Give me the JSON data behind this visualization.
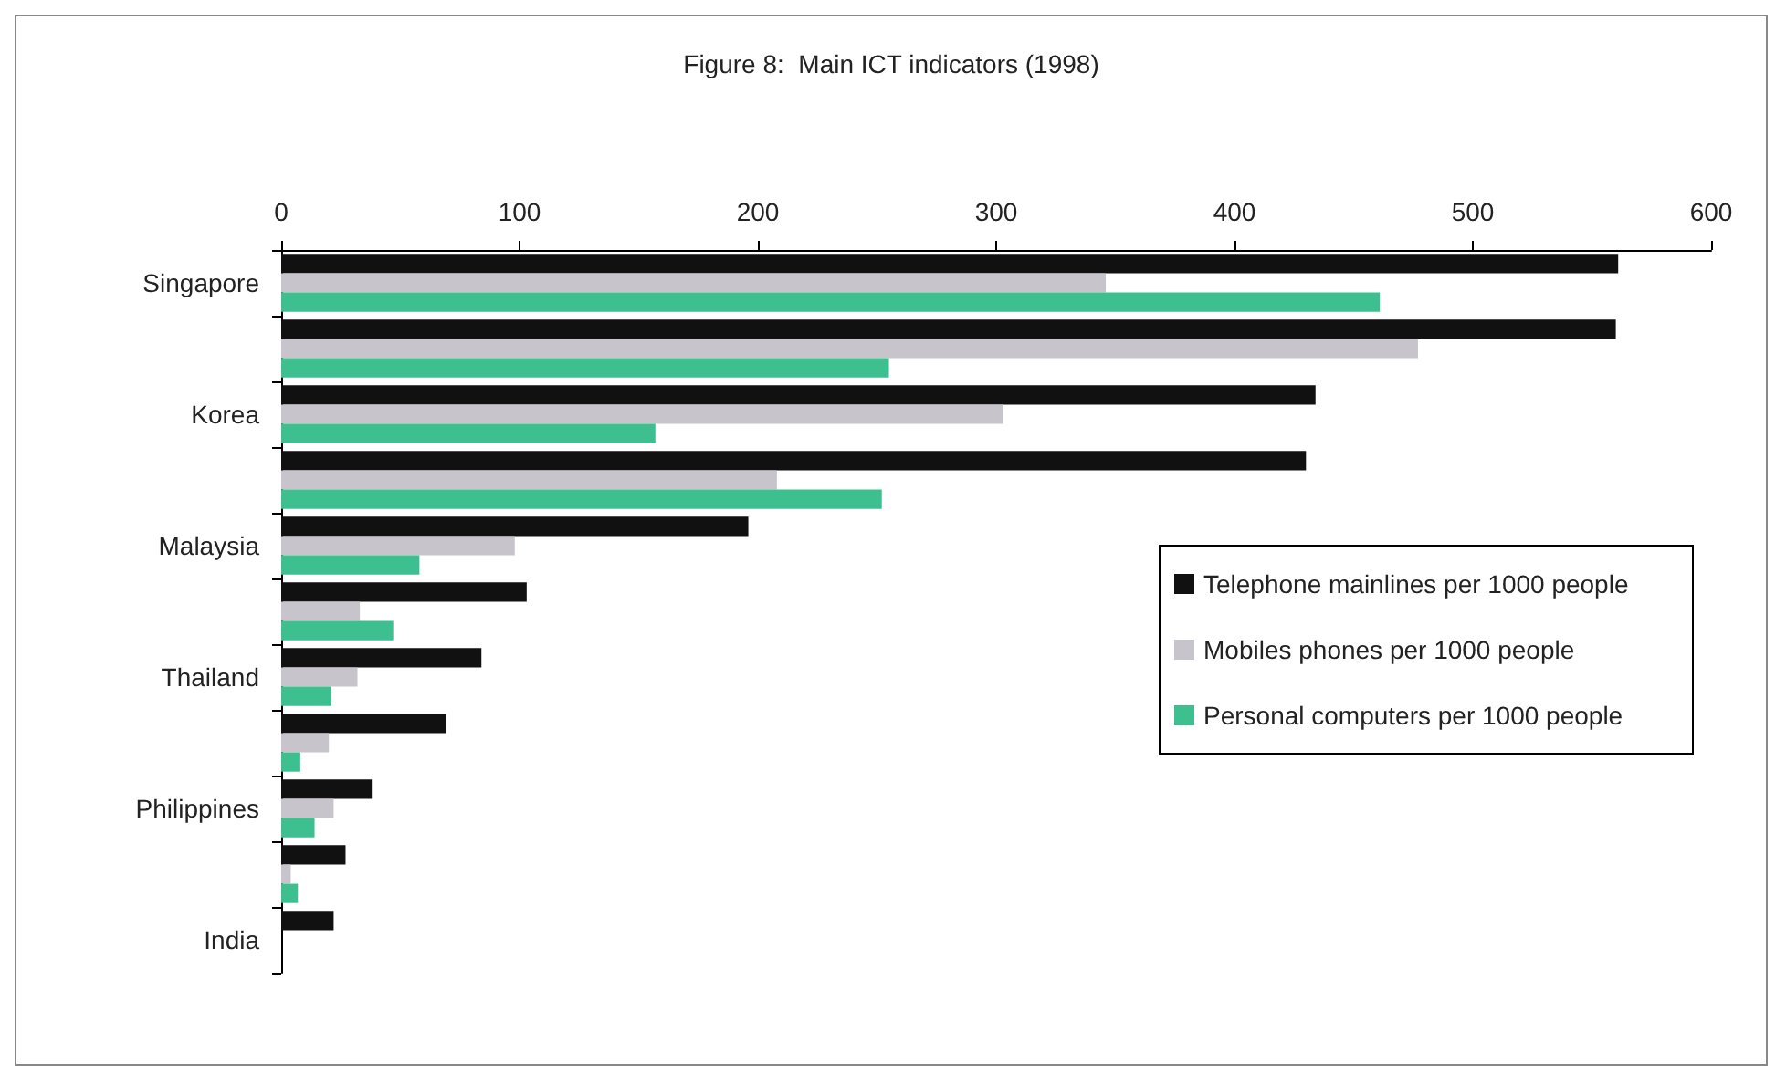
{
  "chart_data": {
    "type": "bar",
    "orientation": "horizontal",
    "title": "Figure 8:  Main ICT indicators (1998)",
    "categories": [
      "Singapore",
      null,
      "Korea",
      null,
      "Malaysia",
      null,
      "Thailand",
      null,
      "Philippines",
      null,
      "India"
    ],
    "series": [
      {
        "name": "Telephone mainlines per 1000 people",
        "color": "#111111",
        "values": [
          561,
          560,
          434,
          430,
          196,
          103,
          84,
          69,
          38,
          27,
          22
        ]
      },
      {
        "name": "Mobiles phones per 1000 people",
        "color": "#c8c4cc",
        "values": [
          346,
          477,
          303,
          208,
          98,
          33,
          32,
          20,
          22,
          4,
          0
        ]
      },
      {
        "name": "Personal computers per 1000 people",
        "color": "#3dbf8f",
        "values": [
          461,
          255,
          157,
          252,
          58,
          47,
          21,
          8,
          14,
          7,
          0
        ]
      }
    ],
    "xlim": [
      0,
      600
    ],
    "xticks": [
      0,
      100,
      200,
      300,
      400,
      500,
      600
    ],
    "grid": false,
    "legend": "right"
  }
}
